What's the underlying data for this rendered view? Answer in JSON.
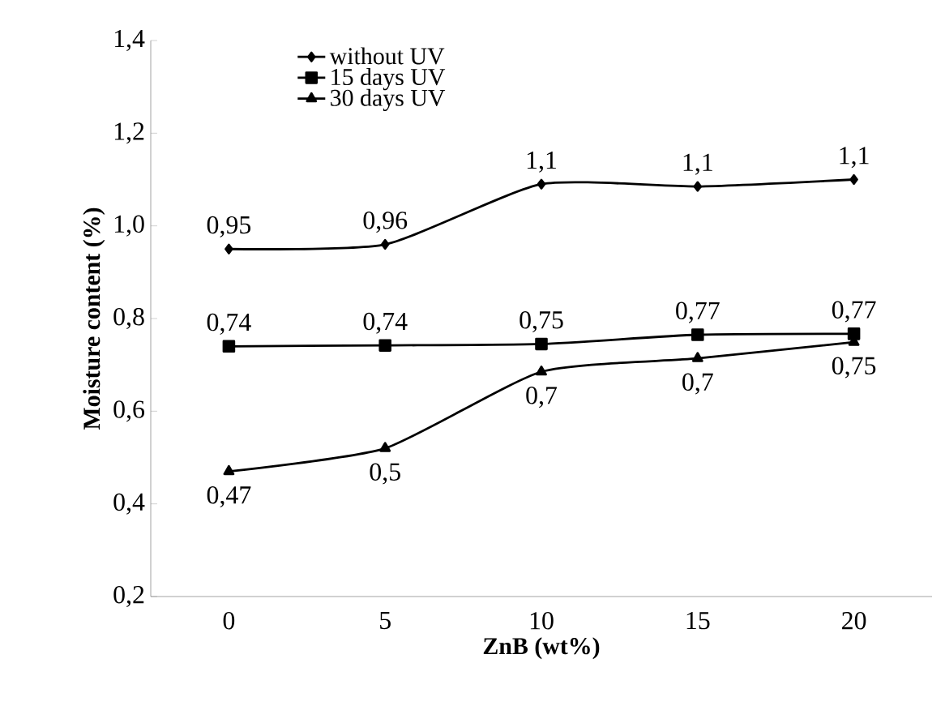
{
  "chart_data": {
    "type": "line",
    "xlabel": "ZnB (wt%)",
    "ylabel": "Moisture content (%)",
    "categories": [
      "0",
      "5",
      "10",
      "15",
      "20"
    ],
    "series": [
      {
        "name": "without UV",
        "color": "#000000",
        "marker": "diamond",
        "values": [
          0.95,
          0.96,
          1.09,
          1.085,
          1.1
        ],
        "value_labels": [
          "0,95",
          "0,96",
          "1,1",
          "1,1",
          "1,1"
        ]
      },
      {
        "name": "15 days UV",
        "color": "#000000",
        "marker": "square",
        "values": [
          0.74,
          0.742,
          0.745,
          0.765,
          0.767
        ],
        "value_labels": [
          "0,74",
          "0,74",
          "0,75",
          "0,77",
          "0,77"
        ]
      },
      {
        "name": "30 days UV",
        "color": "#000000",
        "marker": "triangle",
        "values": [
          0.47,
          0.52,
          0.685,
          0.714,
          0.749
        ],
        "value_labels": [
          "0,47",
          "0,5",
          "0,7",
          "0,7",
          "0,75"
        ]
      }
    ],
    "ylim": [
      0.2,
      1.4
    ],
    "yticks": [
      {
        "value": 0.2,
        "label": "0,2"
      },
      {
        "value": 0.4,
        "label": "0,4"
      },
      {
        "value": 0.6,
        "label": "0,6"
      },
      {
        "value": 0.8,
        "label": "0,8"
      },
      {
        "value": 1.0,
        "label": "1,0"
      },
      {
        "value": 1.2,
        "label": "1,2"
      },
      {
        "value": 1.4,
        "label": "1,4"
      }
    ],
    "grid": false,
    "legend": "top left",
    "line_style": "solid"
  }
}
